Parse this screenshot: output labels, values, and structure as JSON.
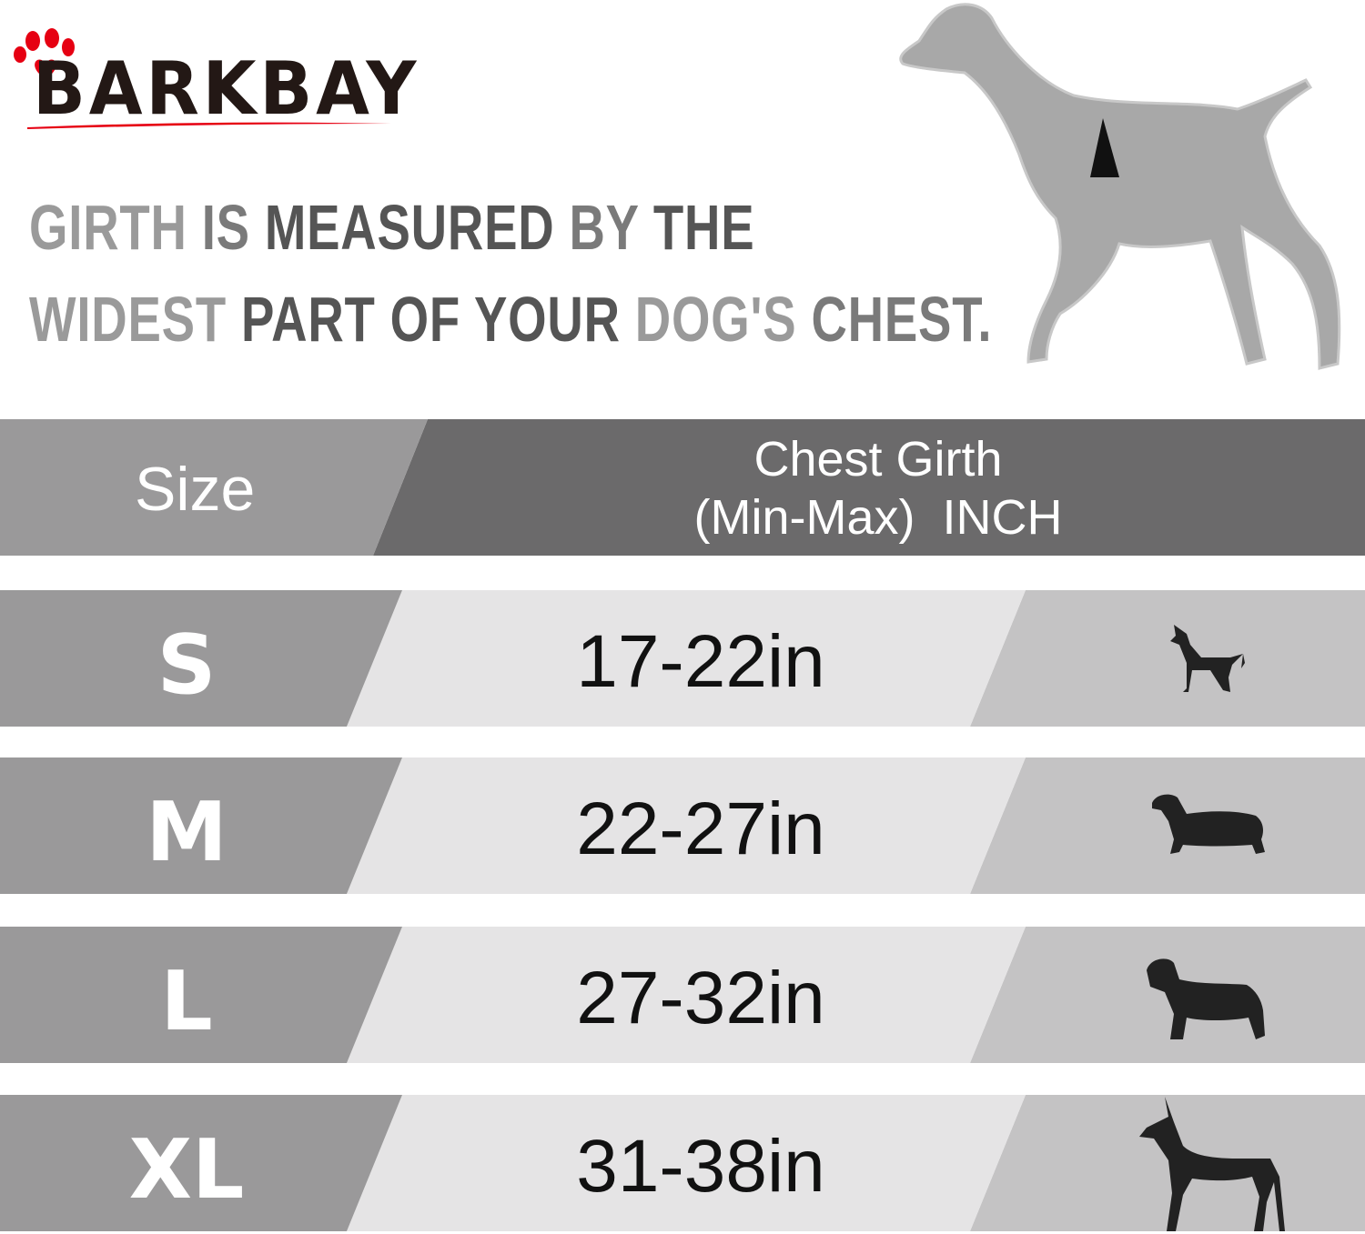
{
  "brand": {
    "logo_text": "BARKBAY",
    "accent_color": "#e60012"
  },
  "headline": {
    "line1": [
      "GIRTH",
      "IS",
      "MEASURED",
      "BY",
      "THE"
    ],
    "line2": [
      "WIDEST",
      "PART",
      "OF",
      "YOUR",
      "DOG'S",
      "CHEST."
    ]
  },
  "table": {
    "header": {
      "size": "Size",
      "girth_line1": "Chest Girth",
      "girth_line2": "(Min-Max)  INCH"
    },
    "rows": [
      {
        "size": "S",
        "range": "17-22in",
        "icon": "chihuahua-icon"
      },
      {
        "size": "M",
        "range": "22-27in",
        "icon": "dachshund-icon"
      },
      {
        "size": "L",
        "range": "27-32in",
        "icon": "labrador-icon"
      },
      {
        "size": "XL",
        "range": "31-38in",
        "icon": "great-dane-icon"
      }
    ],
    "colors": {
      "header_left": "#9a999a",
      "header_right": "#6b6a6b",
      "row_left": "#9a999a",
      "row_mid": "#e5e4e5",
      "row_right": "#c4c3c4"
    }
  }
}
